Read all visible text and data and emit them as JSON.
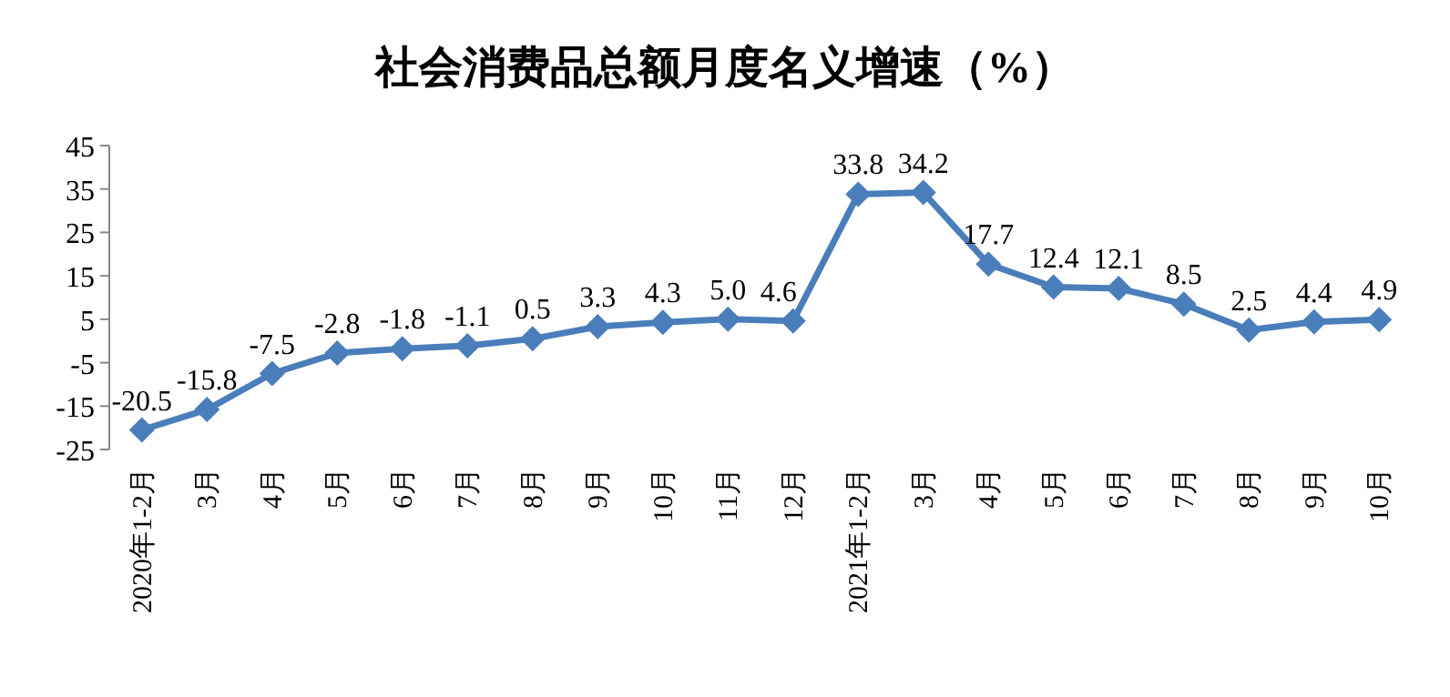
{
  "chart_data": {
    "type": "line",
    "title": "社会消费品总额月度名义增速（%）",
    "categories": [
      "2020年1-2月",
      "3月",
      "4月",
      "5月",
      "6月",
      "7月",
      "8月",
      "9月",
      "10月",
      "11月",
      "12月",
      "2021年1-2月",
      "3月",
      "4月",
      "5月",
      "6月",
      "7月",
      "8月",
      "9月",
      "10月"
    ],
    "series": [
      {
        "color": "#4a7ebb",
        "values": [
          -20.5,
          -15.8,
          -7.5,
          -2.8,
          -1.8,
          -1.1,
          0.5,
          3.3,
          4.3,
          5.0,
          4.6,
          33.8,
          34.2,
          17.7,
          12.4,
          12.1,
          8.5,
          2.5,
          4.4,
          4.9
        ],
        "value_labels": [
          "-20.5",
          "-15.8",
          "-7.5",
          "-2.8",
          "-1.8",
          "-1.1",
          "0.5",
          "3.3",
          "4.3",
          "5.0",
          "4.6",
          "33.8",
          "34.2",
          "17.7",
          "12.4",
          "12.1",
          "8.5",
          "2.5",
          "4.4",
          "4.9"
        ]
      }
    ],
    "ylim": [
      -25,
      45
    ],
    "yticks": [
      -25,
      -15,
      -5,
      5,
      15,
      25,
      35,
      45
    ],
    "marker": "diamond"
  }
}
